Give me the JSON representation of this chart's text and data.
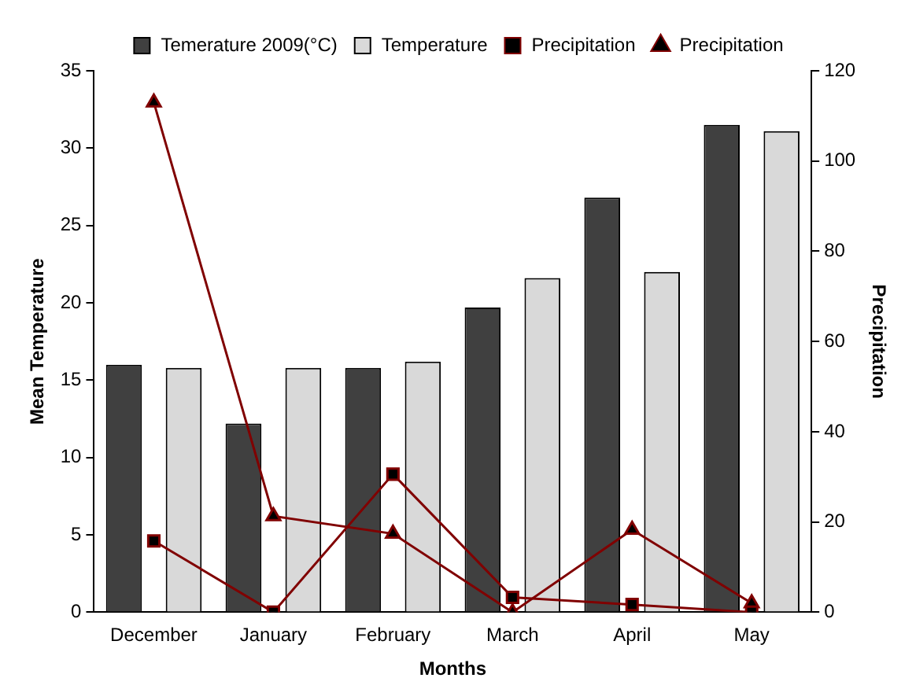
{
  "chart_data": {
    "type": "bar",
    "xlabel": "Months",
    "ylabel": "Mean Temperature",
    "y2label": "Precipitation",
    "categories": [
      "December",
      "January",
      "February",
      "March",
      "April",
      "May"
    ],
    "series": [
      {
        "name": "Temerature 2009(°C)",
        "color": "#404040",
        "values": [
          16,
          12.2,
          15.8,
          19.7,
          26.8,
          31.5
        ]
      },
      {
        "name": "Temperature",
        "color": "#d9d9d9",
        "values": [
          15.8,
          15.8,
          16.2,
          21.6,
          22,
          31.1
        ]
      },
      {
        "name": "Precipitation",
        "type": "line",
        "axis": "y2",
        "marker": "square",
        "color": "#800000",
        "values": [
          15.8,
          0,
          30.6,
          3.3,
          1.7,
          0
        ]
      },
      {
        "name": "Precipitation",
        "type": "line",
        "axis": "y2",
        "marker": "triangle",
        "color": "#800000",
        "values": [
          113,
          21.3,
          17.4,
          0,
          18.3,
          2
        ]
      }
    ],
    "ylim": [
      0,
      35
    ],
    "yticks": [
      0,
      5,
      10,
      15,
      20,
      25,
      30,
      35
    ],
    "y2lim": [
      0,
      120
    ],
    "y2ticks": [
      0,
      20,
      40,
      60,
      80,
      100,
      120
    ],
    "grid": false,
    "legend": "top"
  }
}
